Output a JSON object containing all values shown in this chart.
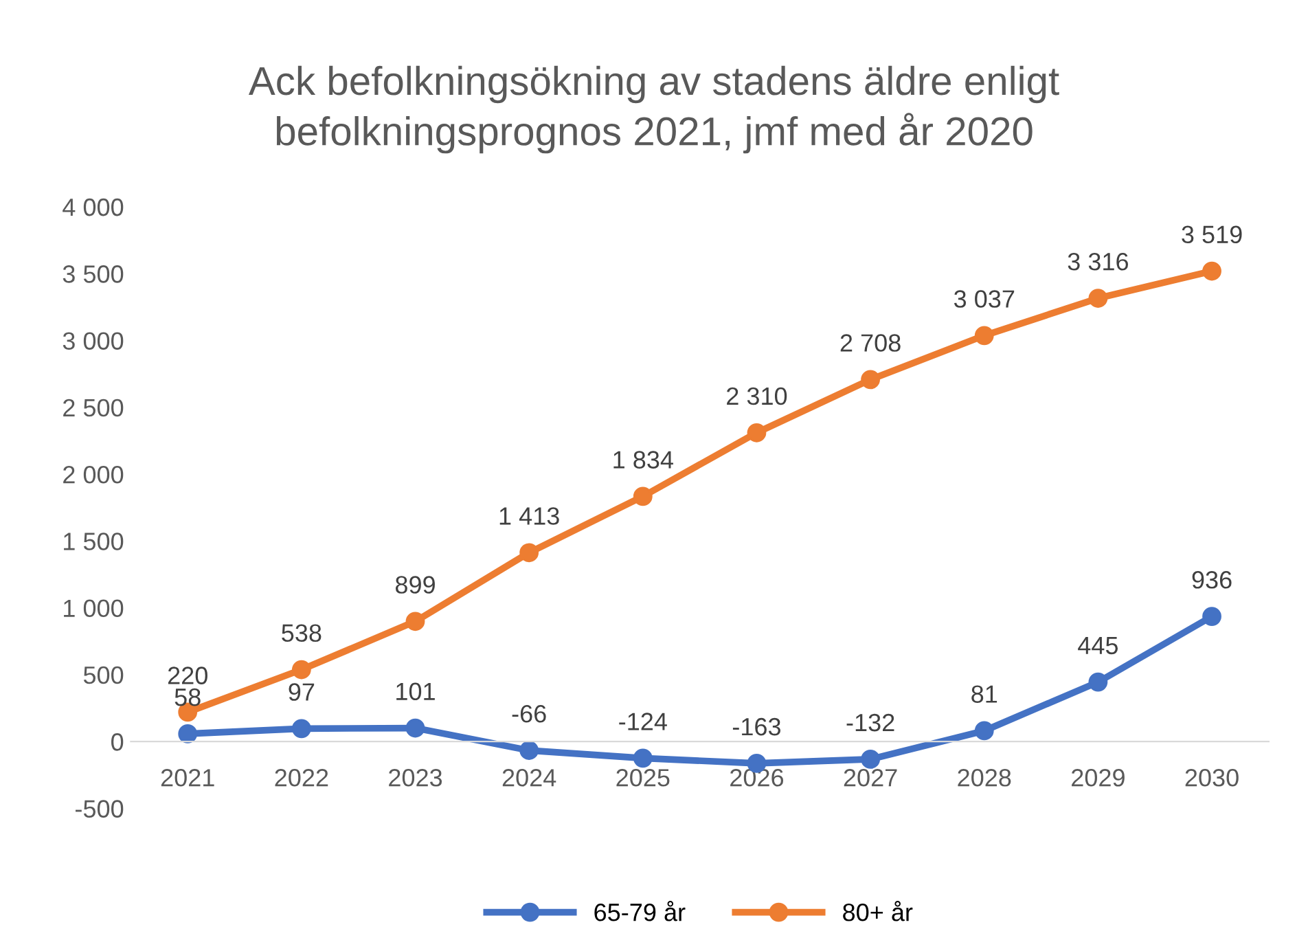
{
  "chart_data": {
    "type": "line",
    "title": "Ack befolkningsökning av stadens äldre enligt\nbefolkningsprognos 2021, jmf med år 2020",
    "categories": [
      "2021",
      "2022",
      "2023",
      "2024",
      "2025",
      "2026",
      "2027",
      "2028",
      "2029",
      "2030"
    ],
    "series": [
      {
        "name": "65-79 år",
        "color": "#4472c4",
        "values": [
          58,
          97,
          101,
          -66,
          -124,
          -163,
          -132,
          81,
          445,
          936
        ],
        "value_labels": [
          "58",
          "97",
          "101",
          "-66",
          "-124",
          "-163",
          "-132",
          "81",
          "445",
          "936"
        ]
      },
      {
        "name": "80+ år",
        "color": "#ed7d31",
        "values": [
          220,
          538,
          899,
          1413,
          1834,
          2310,
          2708,
          3037,
          3316,
          3519
        ],
        "value_labels": [
          "220",
          "538",
          "899",
          "1 413",
          "1 834",
          "2 310",
          "2 708",
          "3 037",
          "3 316",
          "3 519"
        ]
      }
    ],
    "ylim": [
      -500,
      4000
    ],
    "yticks": [
      {
        "value": -500,
        "label": "-500"
      },
      0,
      500,
      {
        "value": 1000,
        "label": "1 000"
      },
      {
        "value": 1500,
        "label": "1 500"
      },
      {
        "value": 2000,
        "label": "2 000"
      },
      {
        "value": 2500,
        "label": "2 500"
      },
      {
        "value": 3000,
        "label": "3 000"
      },
      {
        "value": 3500,
        "label": "3 500"
      },
      {
        "value": 4000,
        "label": "4 000"
      }
    ],
    "grid": false,
    "legend": "bottom",
    "marker": "circle",
    "line_style": "solid"
  }
}
